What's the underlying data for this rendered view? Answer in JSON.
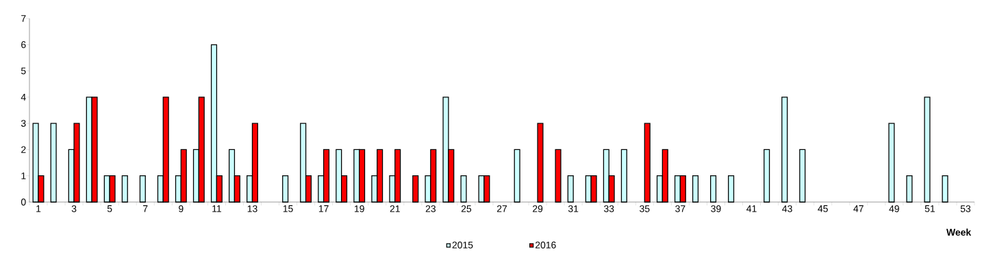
{
  "chart_data": {
    "type": "bar",
    "xlabel": "Week",
    "categories": [
      "1",
      null,
      "3",
      null,
      "5",
      null,
      "7",
      null,
      "9",
      null,
      "11",
      null,
      "13",
      null,
      "15",
      null,
      "17",
      null,
      "19",
      null,
      "21",
      null,
      "23",
      null,
      "25",
      null,
      "27",
      null,
      "29",
      null,
      "31",
      null,
      "33",
      null,
      "35",
      null,
      "37",
      null,
      "39",
      null,
      "41",
      null,
      "43",
      null,
      "45",
      null,
      "47",
      null,
      "49",
      null,
      "51",
      null,
      "53"
    ],
    "series": [
      {
        "name": "2015",
        "color": "#ccffff",
        "values": [
          3,
          3,
          2,
          4,
          1,
          1,
          1,
          1,
          1,
          2,
          6,
          2,
          1,
          null,
          1,
          3,
          1,
          2,
          2,
          1,
          1,
          null,
          1,
          4,
          1,
          1,
          null,
          2,
          null,
          null,
          1,
          1,
          2,
          2,
          null,
          1,
          1,
          1,
          1,
          1,
          null,
          2,
          4,
          2,
          null,
          null,
          null,
          null,
          3,
          1,
          4,
          1,
          null
        ]
      },
      {
        "name": "2016",
        "color": "#ff0000",
        "values": [
          1,
          null,
          3,
          4,
          1,
          null,
          null,
          4,
          2,
          4,
          1,
          1,
          3,
          null,
          null,
          1,
          2,
          1,
          2,
          2,
          2,
          1,
          2,
          2,
          null,
          1,
          null,
          null,
          3,
          2,
          null,
          1,
          1,
          null,
          3,
          2,
          1,
          null,
          null,
          null,
          null,
          null,
          null,
          null,
          null,
          null,
          null,
          null,
          null,
          null,
          null,
          null,
          null
        ]
      }
    ],
    "ylim": [
      0,
      7
    ],
    "yticks": [
      0,
      1,
      2,
      3,
      4,
      5,
      6,
      7
    ],
    "legend": "bottom"
  }
}
